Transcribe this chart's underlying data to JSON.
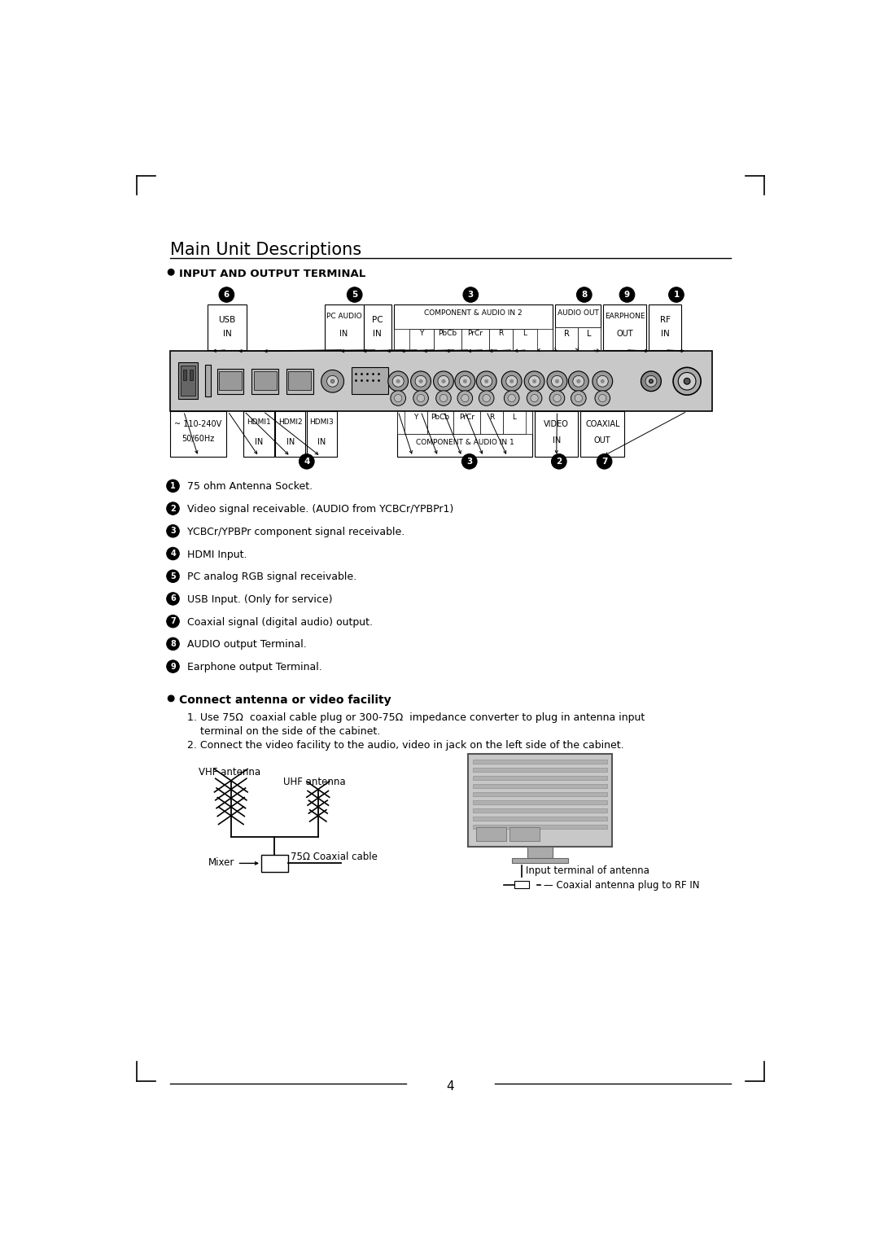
{
  "title": "Main Unit Descriptions",
  "section1_title": "INPUT AND OUTPUT TERMINAL",
  "section2_title": "Connect antenna or video facility",
  "bg_color": "#ffffff",
  "text_color": "#000000",
  "page_number": "4",
  "bullet_items": [
    "75 ohm Antenna Socket.",
    "Video signal receivable. (AUDIO from YCBCr/YPBPr1)",
    "YCBCr/YPBPr component signal receivable.",
    "HDMI Input.",
    "PC analog RGB signal receivable.",
    "USB Input. (Only for service)",
    "Coaxial signal (digital audio) output.",
    "AUDIO output Terminal.",
    "Earphone output Terminal."
  ],
  "connect_items": [
    "1. Use 75Ω  coaxial cable plug or 300-75Ω  impedance converter to plug in antenna input",
    "    terminal on the side of the cabinet.",
    "2. Connect the video facility to the audio, video in jack on the left side of the cabinet."
  ]
}
